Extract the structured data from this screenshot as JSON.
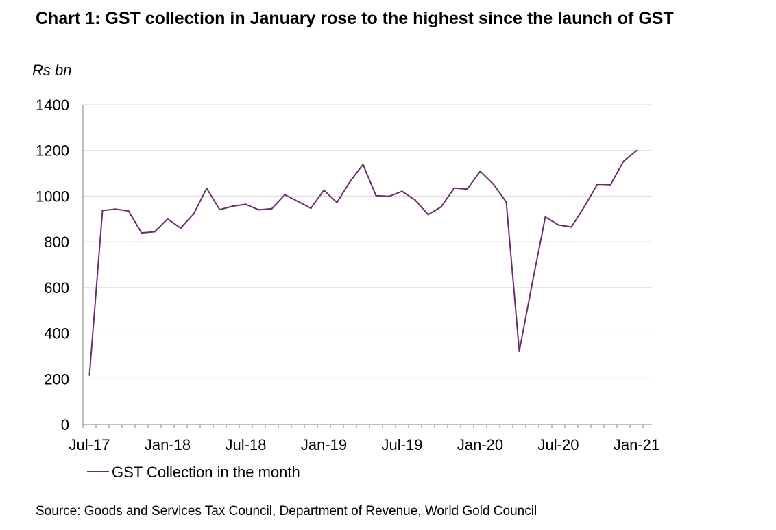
{
  "title": "Chart 1: GST collection in January rose to the highest since the launch of GST",
  "source": "Source: Goods and Services Tax Council, Department of Revenue, World Gold Council",
  "chart_data": {
    "type": "line",
    "ylabel": "Rs bn",
    "ylim": [
      0,
      1400
    ],
    "yticks": [
      "0",
      "200",
      "400",
      "600",
      "800",
      "1000",
      "1200",
      "1400"
    ],
    "xticks": [
      "Jul-17",
      "Jan-18",
      "Jul-18",
      "Jan-19",
      "Jul-19",
      "Jan-20",
      "Jul-20",
      "Jan-21"
    ],
    "grid": true,
    "legend_position": "bottom-left",
    "line_color": "#6b2c6e",
    "x": [
      "Jul-17",
      "Aug-17",
      "Sep-17",
      "Oct-17",
      "Nov-17",
      "Dec-17",
      "Jan-18",
      "Feb-18",
      "Mar-18",
      "Apr-18",
      "May-18",
      "Jun-18",
      "Jul-18",
      "Aug-18",
      "Sep-18",
      "Oct-18",
      "Nov-18",
      "Dec-18",
      "Jan-19",
      "Feb-19",
      "Mar-19",
      "Apr-19",
      "May-19",
      "Jun-19",
      "Jul-19",
      "Aug-19",
      "Sep-19",
      "Oct-19",
      "Nov-19",
      "Dec-19",
      "Jan-20",
      "Feb-20",
      "Mar-20",
      "Apr-20",
      "May-20",
      "Jun-20",
      "Jul-20",
      "Aug-20",
      "Sep-20",
      "Oct-20",
      "Nov-20",
      "Dec-20",
      "Jan-21"
    ],
    "series": [
      {
        "name": "GST Collection in the month",
        "values": [
          217,
          937,
          943,
          935,
          839,
          844,
          900,
          860,
          922,
          1034,
          941,
          956,
          964,
          940,
          945,
          1006,
          977,
          947,
          1026,
          972,
          1063,
          1139,
          1002,
          999,
          1021,
          983,
          919,
          953,
          1035,
          1031,
          1109,
          1053,
          974,
          321,
          620,
          909,
          874,
          865,
          954,
          1052,
          1050,
          1152,
          1199
        ]
      }
    ]
  }
}
